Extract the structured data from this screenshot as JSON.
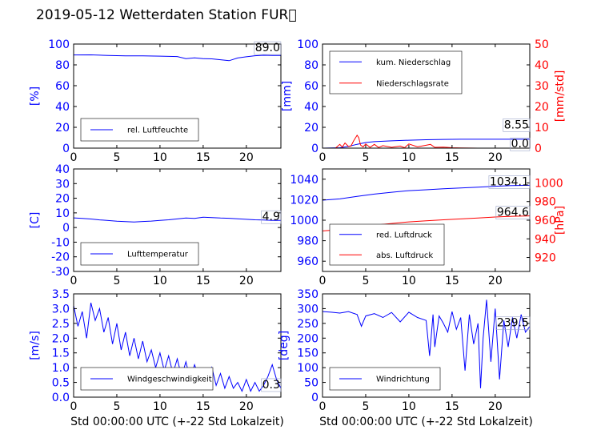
{
  "title": "2019-05-12 Wetterdaten Station FUR\u0000",
  "colors": {
    "primary": "#0000ff",
    "secondary": "#ff0000",
    "axis": "#000000"
  },
  "chart_data": [
    {
      "id": "humidity",
      "type": "line",
      "xlim": [
        0,
        24
      ],
      "xticks": [
        0,
        5,
        10,
        15,
        20
      ],
      "ylim": [
        0,
        100
      ],
      "yticks": [
        0,
        20,
        40,
        60,
        80,
        100
      ],
      "ylabel": "[%]",
      "xlabel": "",
      "grid": false,
      "last_value_label": "89.0",
      "legend": {
        "position": "lower-left",
        "entries": [
          "rel. Luftfeuchte"
        ]
      },
      "series": [
        {
          "name": "rel. Luftfeuchte",
          "axis": "left",
          "color": "#0000ff",
          "x": [
            0,
            2,
            4,
            6,
            8,
            10,
            12,
            13,
            14,
            15,
            16,
            17,
            18,
            19,
            20,
            21,
            22,
            23,
            24
          ],
          "y": [
            89.5,
            89.6,
            89.0,
            88.6,
            88.6,
            88.4,
            88.0,
            86.0,
            86.7,
            85.9,
            85.8,
            84.9,
            84.0,
            86.6,
            87.8,
            88.8,
            89.2,
            89.0,
            89.0
          ]
        }
      ]
    },
    {
      "id": "precipitation",
      "type": "line",
      "xlim": [
        0,
        24
      ],
      "xticks": [
        0,
        5,
        10,
        15,
        20
      ],
      "ylim": [
        0,
        100
      ],
      "yticks": [
        0,
        20,
        40,
        60,
        80,
        100
      ],
      "ylabel": "[mm]",
      "y2lim": [
        0,
        50
      ],
      "y2ticks": [
        0,
        10,
        20,
        30,
        40,
        50
      ],
      "y2label": "[mm/std]",
      "xlabel": "",
      "grid": false,
      "last_value_label": "8.55",
      "last_value_label_2": "0.0",
      "legend": {
        "position": "upper-left",
        "entries": [
          "kum. Niederschlag",
          "Niederschlagsrate"
        ]
      },
      "series": [
        {
          "name": "kum. Niederschlag",
          "axis": "left",
          "color": "#0000ff",
          "x": [
            0,
            2,
            3,
            4,
            5,
            6,
            8,
            10,
            12,
            14,
            16,
            18,
            20,
            22,
            24
          ],
          "y": [
            0,
            0.4,
            1.6,
            3.7,
            5.4,
            6.2,
            7.0,
            7.6,
            8.1,
            8.4,
            8.5,
            8.55,
            8.55,
            8.55,
            8.55
          ]
        },
        {
          "name": "Niederschlagsrate",
          "axis": "right",
          "color": "#ff0000",
          "x": [
            0,
            1.5,
            2,
            2.3,
            2.6,
            3,
            3.3,
            3.6,
            4.0,
            4.2,
            4.4,
            4.7,
            5.0,
            5.5,
            6,
            6.5,
            7,
            8,
            9,
            9.5,
            10,
            11,
            12,
            12.5,
            13,
            14,
            15,
            16,
            18,
            20,
            22,
            24
          ],
          "y": [
            0,
            0,
            1.8,
            0.5,
            2.5,
            0.8,
            1.0,
            3.5,
            6.2,
            5.0,
            1.5,
            0.6,
            2.0,
            0.4,
            1.8,
            0.3,
            1.2,
            0.4,
            1.0,
            0.2,
            2.0,
            0.6,
            1.4,
            1.8,
            0.4,
            0.5,
            0.2,
            0.1,
            0,
            0,
            0,
            0
          ]
        }
      ]
    },
    {
      "id": "temperature",
      "type": "line",
      "xlim": [
        0,
        24
      ],
      "xticks": [
        0,
        5,
        10,
        15,
        20
      ],
      "ylim": [
        -30,
        40
      ],
      "yticks": [
        -30,
        -20,
        -10,
        0,
        10,
        20,
        30,
        40
      ],
      "ylabel": "[C]",
      "xlabel": "",
      "grid": false,
      "last_value_label": "4.9",
      "legend": {
        "position": "lower-left",
        "entries": [
          "Lufttemperatur"
        ]
      },
      "series": [
        {
          "name": "Lufttemperatur",
          "axis": "left",
          "color": "#0000ff",
          "x": [
            0,
            1,
            2,
            3,
            4,
            5,
            6,
            7,
            8,
            9,
            10,
            11,
            12,
            13,
            14,
            15,
            16,
            17,
            18,
            19,
            20,
            21,
            22,
            23,
            24
          ],
          "y": [
            6.6,
            6.2,
            5.8,
            5.2,
            4.8,
            4.3,
            4.0,
            3.8,
            4.1,
            4.4,
            4.9,
            5.3,
            5.9,
            6.5,
            6.2,
            7.0,
            6.8,
            6.5,
            6.3,
            6.0,
            5.6,
            5.3,
            5.1,
            4.9,
            4.9
          ]
        }
      ]
    },
    {
      "id": "pressure",
      "type": "line",
      "xlim": [
        0,
        24
      ],
      "xticks": [
        0,
        5,
        10,
        15,
        20
      ],
      "ylim": [
        950,
        1050
      ],
      "yticks": [
        960,
        980,
        1000,
        1020,
        1040
      ],
      "ylabel": "",
      "y2lim": [
        905,
        1015
      ],
      "y2ticks": [
        920,
        940,
        960,
        980,
        1000
      ],
      "y2label": "[hPa]",
      "xlabel": "",
      "grid": false,
      "last_value_label": "1034.1",
      "last_value_label_2": "964.6",
      "legend": {
        "position": "lower-left",
        "entries": [
          "red. Luftdruck",
          "abs. Luftdruck"
        ]
      },
      "series": [
        {
          "name": "red. Luftdruck",
          "axis": "left",
          "color": "#0000ff",
          "x": [
            0,
            2,
            4,
            6,
            8,
            10,
            12,
            14,
            16,
            18,
            20,
            22,
            24
          ],
          "y": [
            1019.5,
            1020.8,
            1023.3,
            1025.5,
            1027.3,
            1028.8,
            1029.7,
            1030.6,
            1031.4,
            1032.3,
            1033.1,
            1033.8,
            1034.1
          ]
        },
        {
          "name": "abs. Luftdruck",
          "axis": "right",
          "color": "#ff0000",
          "x": [
            0,
            2,
            4,
            6,
            8,
            10,
            12,
            14,
            16,
            18,
            20,
            22,
            24
          ],
          "y": [
            948.5,
            949.8,
            952.2,
            954.6,
            956.5,
            958.2,
            959.4,
            960.4,
            961.4,
            962.4,
            963.4,
            964.2,
            964.6
          ]
        }
      ]
    },
    {
      "id": "windspeed",
      "type": "line",
      "xlim": [
        0,
        24
      ],
      "xticks": [
        0,
        5,
        10,
        15,
        20
      ],
      "ylim": [
        0,
        3.5
      ],
      "yticks": [
        0.0,
        0.5,
        1.0,
        1.5,
        2.0,
        2.5,
        3.0,
        3.5
      ],
      "ylabel": "[m/s]",
      "xlabel": "Std 00:00:00 UTC (+-22 Std Lokalzeit)",
      "grid": false,
      "last_value_label": "0.3",
      "legend": {
        "position": "lower-left",
        "entries": [
          "Windgeschwindigkeit"
        ]
      },
      "series": [
        {
          "name": "Windgeschwindigkeit",
          "axis": "left",
          "color": "#0000ff",
          "x": [
            0,
            0.5,
            1,
            1.5,
            2,
            2.5,
            3,
            3.5,
            4,
            4.5,
            5,
            5.5,
            6,
            6.5,
            7,
            7.5,
            8,
            8.5,
            9,
            9.5,
            10,
            10.5,
            11,
            11.5,
            12,
            12.5,
            13,
            13.5,
            14,
            14.5,
            15,
            15.5,
            16,
            16.5,
            17,
            17.5,
            18,
            18.5,
            19,
            19.5,
            20,
            20.5,
            21,
            21.5,
            22,
            22.5,
            23,
            23.5,
            24
          ],
          "y": [
            3.1,
            2.4,
            2.9,
            2.0,
            3.2,
            2.6,
            3.0,
            2.2,
            2.7,
            1.8,
            2.5,
            1.6,
            2.2,
            1.4,
            2.0,
            1.3,
            1.9,
            1.2,
            1.6,
            1.0,
            1.5,
            0.9,
            1.4,
            0.8,
            1.3,
            0.7,
            1.2,
            0.6,
            1.1,
            0.7,
            0.9,
            0.5,
            1.0,
            0.4,
            0.8,
            0.3,
            0.7,
            0.3,
            0.5,
            0.2,
            0.6,
            0.2,
            0.5,
            0.2,
            0.4,
            0.7,
            1.1,
            0.6,
            0.3
          ]
        }
      ]
    },
    {
      "id": "winddirection",
      "type": "line",
      "xlim": [
        0,
        24
      ],
      "xticks": [
        0,
        5,
        10,
        15,
        20
      ],
      "ylim": [
        0,
        350
      ],
      "yticks": [
        0,
        50,
        100,
        150,
        200,
        250,
        300,
        350
      ],
      "ylabel": "[deg]",
      "xlabel": "Std 00:00:00 UTC (+-22 Std Lokalzeit)",
      "grid": false,
      "last_value_label": "239.5",
      "legend": {
        "position": "lower-left",
        "entries": [
          "Windrichtung"
        ]
      },
      "series": [
        {
          "name": "Windrichtung",
          "axis": "left",
          "color": "#0000ff",
          "x": [
            0,
            1,
            2,
            3,
            4,
            4.5,
            5,
            6,
            7,
            8,
            9,
            10,
            11,
            12,
            12.4,
            12.8,
            13,
            13.5,
            14,
            14.5,
            15,
            15.5,
            16,
            16.5,
            17,
            17.5,
            18,
            18.3,
            18.6,
            19,
            19.5,
            20,
            20.5,
            21,
            21.5,
            22,
            22.5,
            23,
            23.5,
            24
          ],
          "y": [
            290,
            288,
            285,
            290,
            280,
            240,
            275,
            283,
            270,
            287,
            255,
            288,
            270,
            260,
            140,
            280,
            170,
            275,
            250,
            220,
            290,
            230,
            270,
            90,
            280,
            180,
            250,
            30,
            200,
            330,
            120,
            300,
            60,
            260,
            170,
            270,
            200,
            280,
            220,
            239.5
          ]
        }
      ]
    }
  ]
}
